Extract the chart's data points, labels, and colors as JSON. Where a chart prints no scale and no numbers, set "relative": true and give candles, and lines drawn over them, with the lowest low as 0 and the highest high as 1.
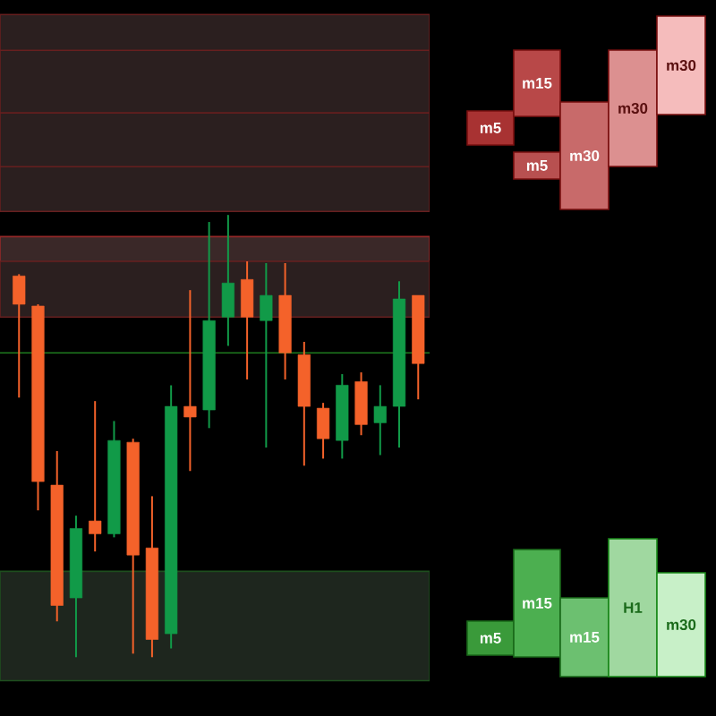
{
  "chart_data": {
    "type": "candlestick",
    "relative": true,
    "categories": [
      null,
      null,
      null,
      null,
      null,
      null,
      null,
      null,
      null,
      null,
      null,
      null,
      null,
      null,
      null,
      null,
      null,
      null,
      null,
      null,
      null,
      null
    ],
    "ohlc": [
      [
        0.862,
        0.866,
        0.587,
        0.798
      ],
      [
        0.794,
        0.798,
        0.332,
        0.397
      ],
      [
        0.389,
        0.466,
        0.081,
        0.117
      ],
      [
        0.134,
        0.32,
        0.0,
        0.291
      ],
      [
        0.308,
        0.579,
        0.239,
        0.279
      ],
      [
        0.279,
        0.534,
        0.271,
        0.49
      ],
      [
        0.486,
        0.494,
        0.008,
        0.231
      ],
      [
        0.247,
        0.364,
        0.0,
        0.04
      ],
      [
        0.053,
        0.615,
        0.02,
        0.567
      ],
      [
        0.567,
        0.83,
        0.421,
        0.543
      ],
      [
        0.559,
        0.984,
        0.518,
        0.761
      ],
      [
        0.769,
        1.0,
        0.704,
        0.846
      ],
      [
        0.854,
        0.895,
        0.628,
        0.769
      ],
      [
        0.761,
        0.891,
        0.474,
        0.818
      ],
      [
        0.818,
        0.891,
        0.628,
        0.688
      ],
      [
        0.684,
        0.713,
        0.433,
        0.567
      ],
      [
        0.563,
        0.575,
        0.449,
        0.494
      ],
      [
        0.49,
        0.64,
        0.449,
        0.615
      ],
      [
        0.623,
        0.644,
        0.502,
        0.526
      ],
      [
        0.53,
        0.615,
        0.457,
        0.567
      ],
      [
        0.567,
        0.85,
        0.474,
        0.81
      ],
      [
        0.818,
        0.818,
        0.583,
        0.664
      ]
    ],
    "colors": [
      "#f4622a",
      "#f4622a",
      "#f4622a",
      "#119a48",
      "#f4622a",
      "#119a48",
      "#f4622a",
      "#f4622a",
      "#119a48",
      "#f4622a",
      "#119a48",
      "#119a48",
      "#f4622a",
      "#119a48",
      "#f4622a",
      "#f4622a",
      "#f4622a",
      "#119a48",
      "#f4622a",
      "#119a48",
      "#119a48",
      "#f4622a"
    ],
    "bands": [
      {
        "axis": "y",
        "from": 1.008,
        "to": 1.453,
        "color": "#2b1f1f"
      },
      {
        "axis": "y",
        "from": 1.109,
        "to": 1.231,
        "color": "#2b1f1f"
      },
      {
        "axis": "y",
        "from": 1.231,
        "to": 1.372,
        "color": "#2b1f1f"
      },
      {
        "axis": "y",
        "from": 0.777,
        "to": 0.951,
        "color": "#3a2828"
      },
      {
        "axis": "y",
        "from": 0.769,
        "to": 0.895,
        "color": "#2b1f1f"
      },
      {
        "axis": "y",
        "from": -0.053,
        "to": 0.194,
        "color": "#1e261e"
      }
    ],
    "ref_lines": [
      {
        "axis": "y",
        "value": 0.688,
        "color": "#1e7a1e"
      }
    ],
    "annotations": [
      "m5",
      "m15",
      "m5",
      "m30",
      "m30",
      "m30",
      "m5",
      "m15",
      "m15",
      "H1",
      "m30"
    ]
  }
}
